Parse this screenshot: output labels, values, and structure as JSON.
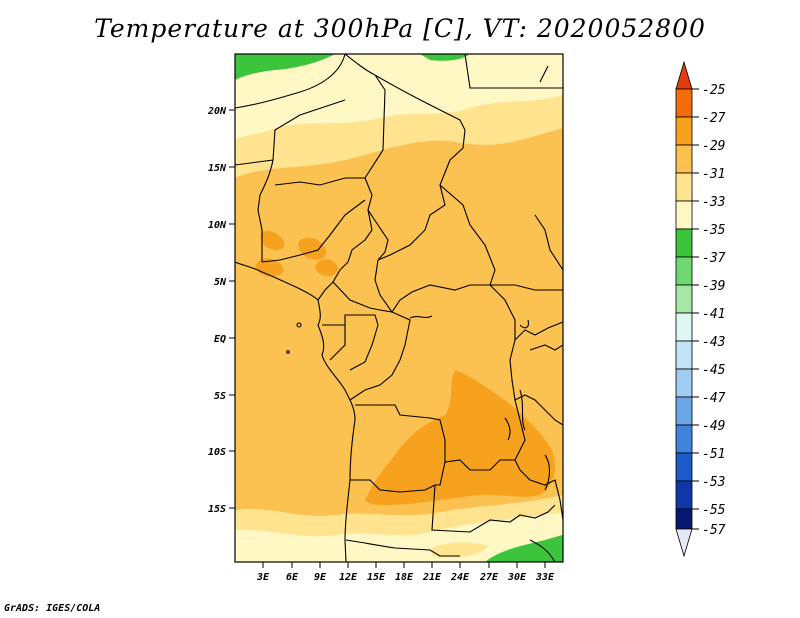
{
  "title": "Temperature at 300hPa [C], VT: 2020052800",
  "credit": "GrADS: IGES/COLA",
  "map": {
    "lat_labels": [
      "20N",
      "15N",
      "10N",
      "5N",
      "EQ",
      "5S",
      "10S",
      "15S"
    ],
    "lon_labels": [
      "3E",
      "6E",
      "9E",
      "12E",
      "15E",
      "18E",
      "21E",
      "24E",
      "27E",
      "30E",
      "33E"
    ],
    "lat_range": [
      -20,
      24
    ],
    "lon_range": [
      0,
      35
    ],
    "fill_colors": {
      "band_35_33": "#fff8c4",
      "band_33_31": "#ffe38f",
      "band_31_29": "#fbc151",
      "band_29_27": "#f7a21f",
      "band_37_35": "#3dc43d"
    }
  },
  "colorbar": {
    "labels": [
      "-25",
      "-27",
      "-29",
      "-31",
      "-33",
      "-35",
      "-37",
      "-39",
      "-41",
      "-43",
      "-45",
      "-47",
      "-49",
      "-51",
      "-53",
      "-55",
      "-57"
    ],
    "colors": [
      "#e23b0e",
      "#f36e0a",
      "#f7a21f",
      "#fbc151",
      "#ffe38f",
      "#fff8c4",
      "#3dc43d",
      "#70d870",
      "#a5e8a5",
      "#dff7f2",
      "#c3e3f7",
      "#9fccf0",
      "#6ba7e6",
      "#3f83dc",
      "#1d5cc8",
      "#1037a6",
      "#0a1770",
      "#e8e8f4"
    ]
  }
}
